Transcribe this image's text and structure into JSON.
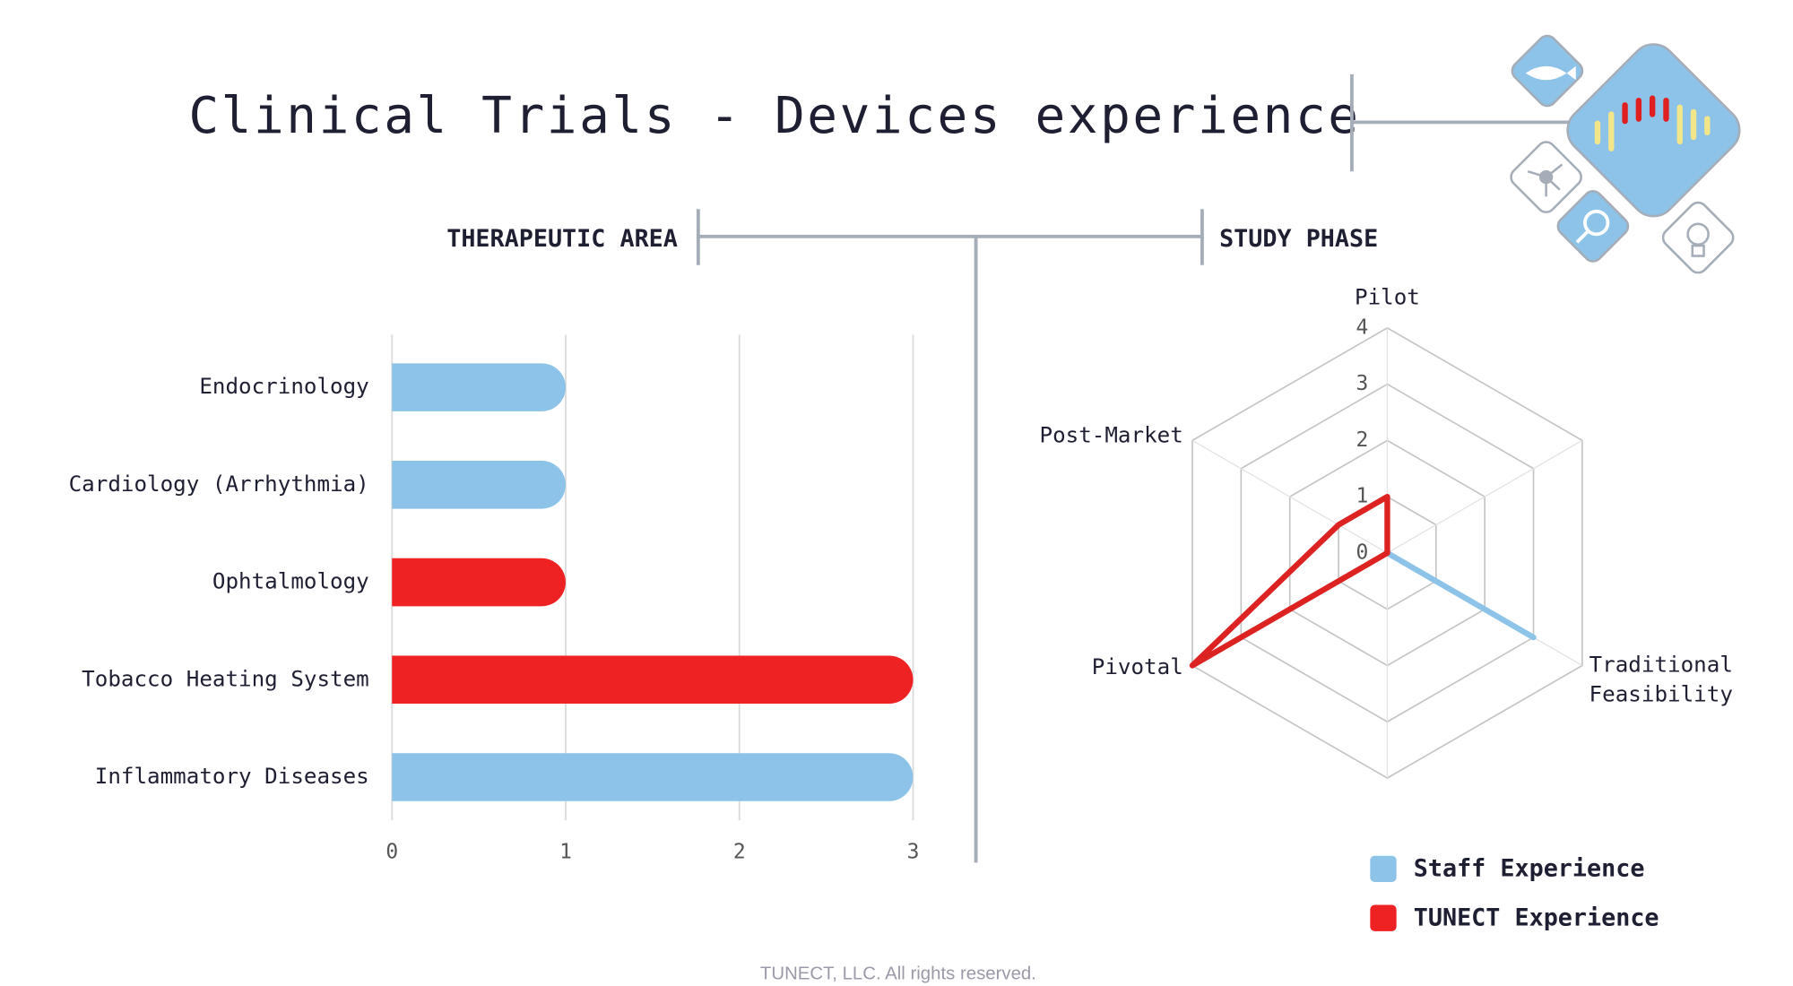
{
  "title": "Clinical Trials - Devices experience",
  "footer": "TUNECT, LLC. All rights reserved.",
  "chart_data": [
    {
      "type": "bar",
      "orientation": "horizontal",
      "title": "THERAPEUTIC AREA",
      "categories": [
        "Endocrinology",
        "Cardiology (Arrhythmia)",
        "Ophtalmology",
        "Tobacco Heating System",
        "Inflammatory Diseases"
      ],
      "series": [
        {
          "name": "Staff Experience",
          "color": "#8dc3e8",
          "values": [
            1,
            1,
            null,
            null,
            3
          ]
        },
        {
          "name": "TUNECT Experience",
          "color": "#ee2222",
          "values": [
            null,
            null,
            1,
            3,
            null
          ]
        }
      ],
      "xlim": [
        0,
        3
      ],
      "xticks": [
        0,
        1,
        2,
        3
      ],
      "grid": true
    },
    {
      "type": "radar",
      "title": "STUDY PHASE",
      "categories": [
        "Pilot",
        null,
        "Traditional Feasibility",
        null,
        "Pivotal",
        "Post-Market"
      ],
      "series": [
        {
          "name": "Staff Experience",
          "color": "#8dc3e8",
          "values": [
            0,
            0,
            3,
            0,
            0,
            0
          ]
        },
        {
          "name": "TUNECT Experience",
          "color": "#dd2222",
          "values": [
            1,
            0,
            0,
            0,
            4,
            1
          ]
        }
      ],
      "rlim": [
        0,
        4
      ],
      "rticks": [
        0,
        1,
        2,
        3,
        4
      ],
      "grid": true
    }
  ]
}
